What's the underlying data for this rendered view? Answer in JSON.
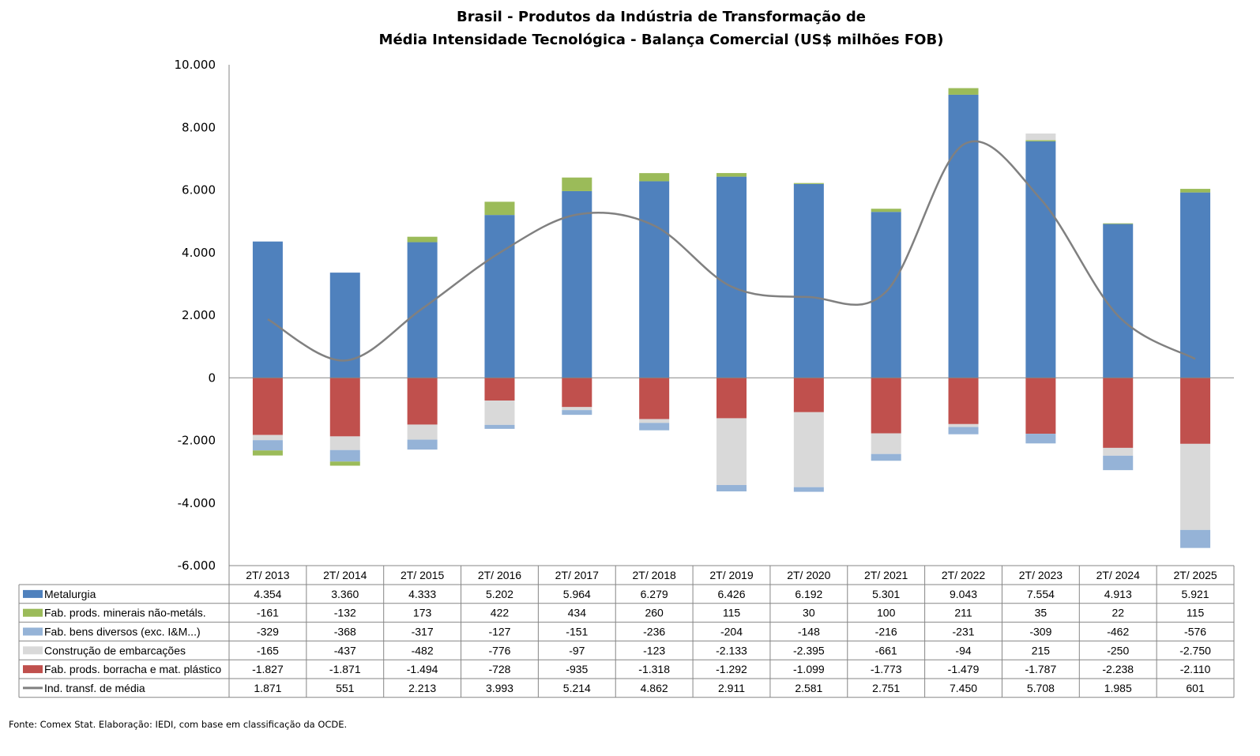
{
  "chart_data": {
    "type": "bar",
    "stacked": true,
    "title": [
      "Brasil - Produtos da Indústria de Transformação de",
      "Média Intensidade Tecnológica - Balança Comercial (US$ milhões FOB)"
    ],
    "categories": [
      "2T/ 2013",
      "2T/ 2014",
      "2T/ 2015",
      "2T/ 2016",
      "2T/ 2017",
      "2T/ 2018",
      "2T/ 2019",
      "2T/ 2020",
      "2T/ 2021",
      "2T/ 2022",
      "2T/ 2023",
      "2T/ 2024",
      "2T/ 2025"
    ],
    "ylim": [
      -6000,
      10000
    ],
    "yticks": [
      10000,
      8000,
      6000,
      4000,
      2000,
      0,
      -2000,
      -4000,
      -6000
    ],
    "ytick_labels": [
      "10.000",
      "8.000",
      "6.000",
      "4.000",
      "2.000",
      "0",
      "-2.000",
      "-4.000",
      "-6.000"
    ],
    "grid": false,
    "legend": "data-table",
    "series": [
      {
        "name": "Metalurgia",
        "kind": "bar",
        "color": "#4F81BD",
        "values": [
          4354,
          3360,
          4333,
          5202,
          5964,
          6279,
          6426,
          6192,
          5301,
          9043,
          7554,
          4913,
          5921
        ],
        "labels": [
          "4.354",
          "3.360",
          "4.333",
          "5.202",
          "5.964",
          "6.279",
          "6.426",
          "6.192",
          "5.301",
          "9.043",
          "7.554",
          "4.913",
          "5.921"
        ]
      },
      {
        "name": "Fab. prods. minerais não-metáls.",
        "kind": "bar",
        "color": "#9BBB59",
        "values": [
          -161,
          -132,
          173,
          422,
          434,
          260,
          115,
          30,
          100,
          211,
          35,
          22,
          115
        ],
        "labels": [
          "-161",
          "-132",
          "173",
          "422",
          "434",
          "260",
          "115",
          "30",
          "100",
          "211",
          "35",
          "22",
          "115"
        ]
      },
      {
        "name": "Fab. bens diversos (exc. I&M...)",
        "kind": "bar",
        "color": "#95B3D7",
        "values": [
          -329,
          -368,
          -317,
          -127,
          -151,
          -236,
          -204,
          -148,
          -216,
          -231,
          -309,
          -462,
          -576
        ],
        "labels": [
          "-329",
          "-368",
          "-317",
          "-127",
          "-151",
          "-236",
          "-204",
          "-148",
          "-216",
          "-231",
          "-309",
          "-462",
          "-576"
        ]
      },
      {
        "name": "Construção de embarcações",
        "kind": "bar",
        "color": "#D9D9D9",
        "values": [
          -165,
          -437,
          -482,
          -776,
          -97,
          -123,
          -2133,
          -2395,
          -661,
          -94,
          215,
          -250,
          -2750
        ],
        "labels": [
          "-165",
          "-437",
          "-482",
          "-776",
          "-97",
          "-123",
          "-2.133",
          "-2.395",
          "-661",
          "-94",
          "215",
          "-250",
          "-2.750"
        ]
      },
      {
        "name": "Fab. prods. borracha e mat. plástico",
        "kind": "bar",
        "color": "#C0504D",
        "values": [
          -1827,
          -1871,
          -1494,
          -728,
          -935,
          -1318,
          -1292,
          -1099,
          -1773,
          -1479,
          -1787,
          -2238,
          -2110
        ],
        "labels": [
          "-1.827",
          "-1.871",
          "-1.494",
          "-728",
          "-935",
          "-1.318",
          "-1.292",
          "-1.099",
          "-1.773",
          "-1.479",
          "-1.787",
          "-2.238",
          "-2.110"
        ]
      },
      {
        "name": "Ind. transf. de média",
        "kind": "line",
        "color": "#808080",
        "values": [
          1871,
          551,
          2213,
          3993,
          5214,
          4862,
          2911,
          2581,
          2751,
          7450,
          5708,
          1985,
          601
        ],
        "labels": [
          "1.871",
          "551",
          "2.213",
          "3.993",
          "5.214",
          "4.862",
          "2.911",
          "2.581",
          "2.751",
          "7.450",
          "5.708",
          "1.985",
          "601"
        ]
      }
    ]
  },
  "footer": "Fonte:  Comex Stat. Elaboração: IEDI, com base em classificação da OCDE."
}
